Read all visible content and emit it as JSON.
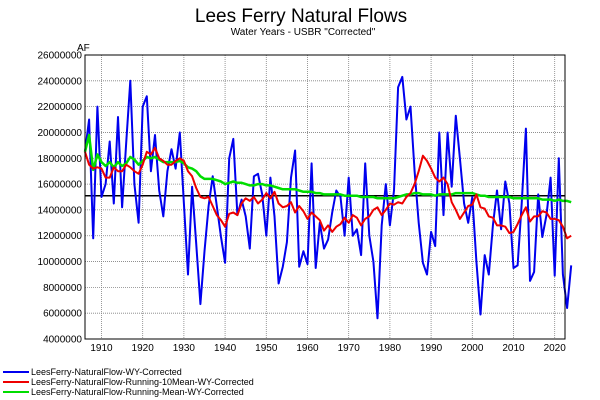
{
  "chart_data": {
    "type": "line",
    "title": "Lees Ferry Natural Flows",
    "subtitle": "Water Years - USBR \"Corrected\"",
    "ylabel": "AF",
    "xlabel": "",
    "xlim": [
      1906,
      2022.5
    ],
    "ylim": [
      4000000,
      26000000
    ],
    "xticks": [
      1910,
      1920,
      1930,
      1940,
      1950,
      1960,
      1970,
      1980,
      1990,
      2000,
      2010,
      2020
    ],
    "yticks": [
      4000000,
      6000000,
      8000000,
      10000000,
      12000000,
      14000000,
      16000000,
      18000000,
      20000000,
      22000000,
      24000000,
      26000000
    ],
    "grid": true,
    "reference_line": 15100000,
    "legend_position": "bottom-left",
    "series": [
      {
        "name": "LeesFerry-NaturalFlow-WY-Corrected",
        "color": "#0000ee",
        "x_start": 1906,
        "values": [
          18500000,
          21000000,
          11800000,
          22000000,
          15000000,
          16000000,
          19300000,
          14500000,
          21200000,
          14200000,
          19200000,
          24000000,
          16000000,
          13000000,
          22000000,
          22800000,
          17000000,
          19800000,
          15500000,
          13500000,
          17000000,
          18700000,
          17200000,
          20000000,
          14500000,
          9000000,
          15800000,
          11400000,
          6700000,
          10800000,
          14300000,
          16600000,
          14300000,
          11900000,
          9900000,
          18000000,
          19500000,
          13600000,
          14800000,
          13500000,
          11000000,
          16600000,
          16800000,
          15200000,
          12000000,
          16500000,
          13500000,
          8300000,
          9600000,
          11500000,
          16500000,
          18600000,
          9600000,
          10800000,
          9800000,
          17600000,
          9500000,
          13000000,
          11000000,
          11700000,
          13800000,
          15500000,
          15000000,
          12000000,
          16500000,
          12000000,
          12500000,
          10500000,
          17600000,
          12000000,
          10000000,
          5600000,
          12800000,
          16000000,
          12800000,
          15500000,
          23500000,
          24300000,
          21000000,
          22000000,
          17000000,
          13000000,
          9900000,
          9000000,
          12300000,
          11200000,
          20000000,
          13600000,
          20000000,
          15800000,
          21300000,
          18000000,
          14500000,
          13000000,
          15000000,
          10000000,
          5900000,
          10500000,
          9000000,
          12800000,
          15500000,
          12500000,
          16200000,
          14500000,
          9500000,
          9700000,
          14500000,
          20300000,
          8500000,
          9200000,
          15200000,
          11900000,
          13600000,
          16500000,
          8900000,
          18000000,
          9000000,
          6400000,
          9700000
        ],
        "width": 2
      },
      {
        "name": "LeesFerry-NaturalFlow-Running-10Mean-WY-Corrected",
        "color": "#ee0000",
        "x_start": 1906,
        "values": [
          18500000,
          17500000,
          17200000,
          17300000,
          17200000,
          16500000,
          16500000,
          17300000,
          17000000,
          17000000,
          17500000,
          17300000,
          17000000,
          16800000,
          17500000,
          18500000,
          18300000,
          18800000,
          18000000,
          17800000,
          17500000,
          17500000,
          17800000,
          18000000,
          17800000,
          17000000,
          16600000,
          15700000,
          15000000,
          14900000,
          15000000,
          14300000,
          13600000,
          13200000,
          12700000,
          13700000,
          13800000,
          13600000,
          14500000,
          14900000,
          14700000,
          15000000,
          14500000,
          14800000,
          15300000,
          14900000,
          15400000,
          14500000,
          14200000,
          14300000,
          14600000,
          13800000,
          14300000,
          13900000,
          13300000,
          13800000,
          13500000,
          13200000,
          12400000,
          12800000,
          12300000,
          12700000,
          12900000,
          13400000,
          13000000,
          13600000,
          13400000,
          12800000,
          13300000,
          13500000,
          14000000,
          14200000,
          13600000,
          14000000,
          14500000,
          14400000,
          14600000,
          14500000,
          15000000,
          15300000,
          16000000,
          17000000,
          18200000,
          17800000,
          17200000,
          16500000,
          16200000,
          16500000,
          16000000,
          14600000,
          14000000,
          13300000,
          13800000,
          14300000,
          14400000,
          15200000,
          14200000,
          14100000,
          13500000,
          13400000,
          12800000,
          12800000,
          12700000,
          12200000,
          12300000,
          12900000,
          13600000,
          14200000,
          13100000,
          13500000,
          13500000,
          13900000,
          13800000,
          13300000,
          13300000,
          13200000,
          12700000,
          11800000,
          12000000
        ],
        "width": 2
      },
      {
        "name": "LeesFerry-NaturalFlow-Running-Mean-WY-Corrected",
        "color": "#00dd00",
        "x_start": 1906,
        "values": [
          18500000,
          19800000,
          17100000,
          18300000,
          17700000,
          17400000,
          17700000,
          17300000,
          17700000,
          17400000,
          17600000,
          18100000,
          17900000,
          17500000,
          17800000,
          18100000,
          18000000,
          18100000,
          17900000,
          17700000,
          17700000,
          17700000,
          17700000,
          17800000,
          17600000,
          17300000,
          17200000,
          17000000,
          16600000,
          16400000,
          16400000,
          16400000,
          16300000,
          16200000,
          16000000,
          16100000,
          16200000,
          16100000,
          16100000,
          16000000,
          15900000,
          15900000,
          16000000,
          16000000,
          15900000,
          15900000,
          15800000,
          15700000,
          15600000,
          15600000,
          15600000,
          15600000,
          15500000,
          15400000,
          15400000,
          15400000,
          15300000,
          15300000,
          15200000,
          15200000,
          15200000,
          15200000,
          15200000,
          15100000,
          15100000,
          15100000,
          15100000,
          15000000,
          15000000,
          15000000,
          15000000,
          14900000,
          14900000,
          14900000,
          14900000,
          14900000,
          15000000,
          15100000,
          15200000,
          15200000,
          15300000,
          15300000,
          15200000,
          15200000,
          15200000,
          15100000,
          15200000,
          15200000,
          15200000,
          15200000,
          15300000,
          15300000,
          15300000,
          15300000,
          15300000,
          15200000,
          15100000,
          15100000,
          15000000,
          15000000,
          15000000,
          15000000,
          15000000,
          15000000,
          14900000,
          14900000,
          14900000,
          14900000,
          14900000,
          14900000,
          14900000,
          14800000,
          14800000,
          14800000,
          14700000,
          14800000,
          14700000,
          14700000,
          14600000
        ],
        "width": 2.5
      }
    ]
  }
}
